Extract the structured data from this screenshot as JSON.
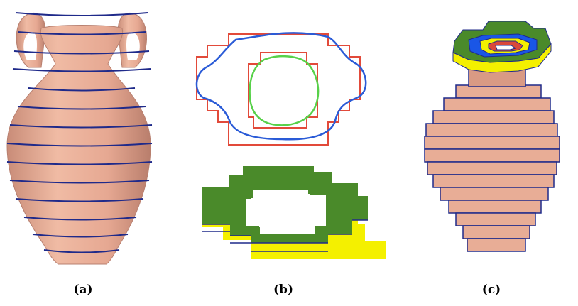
{
  "figure": {
    "captions": {
      "a": "(a)",
      "b": "(b)",
      "c": "(c)"
    },
    "colors": {
      "surface": "#e8ad96",
      "surface_dark": "#c98c78",
      "slice_line": "#1f2a8a",
      "outer_voxel_contour": "#e24a3a",
      "outer_contour": "#2a5bd7",
      "inner_contour": "#58d14a",
      "layer_top": "#4a8a2a",
      "layer_side": "#f4f000",
      "core_red": "#d9483a",
      "core_blue": "#1a56e6"
    }
  }
}
